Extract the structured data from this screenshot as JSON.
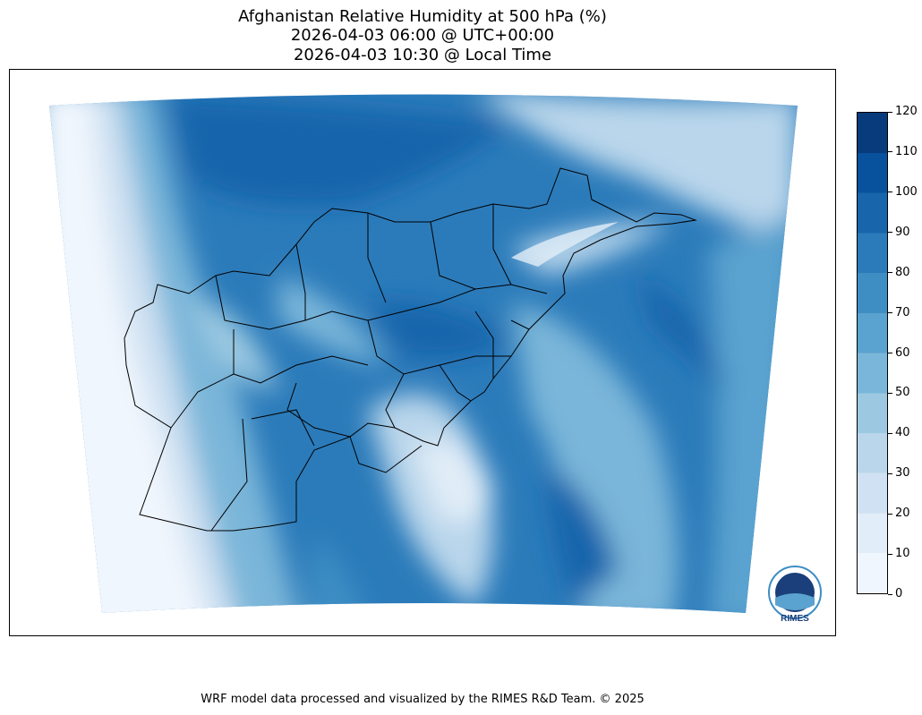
{
  "title": {
    "line1": "Afghanistan Relative Humidity at 500 hPa (%)",
    "line2": "2026-04-03 06:00 @ UTC+00:00",
    "line3": "2026-04-03 10:30 @ Local Time"
  },
  "colorbar": {
    "ticks": [
      "0",
      "10",
      "20",
      "30",
      "40",
      "50",
      "60",
      "70",
      "80",
      "90",
      "100",
      "110",
      "120"
    ],
    "colors": [
      "#f0f6fd",
      "#e1edf8",
      "#cfe1f2",
      "#b9d6eb",
      "#9cc9e1",
      "#7ab6d9",
      "#5aa2cf",
      "#3e8ec4",
      "#2b7bba",
      "#1865ac",
      "#08519c",
      "#083b7c"
    ]
  },
  "logo": {
    "text": "RIMES"
  },
  "footer": "WRF model data processed and visualized by the RIMES R&D Team. © 2025"
}
